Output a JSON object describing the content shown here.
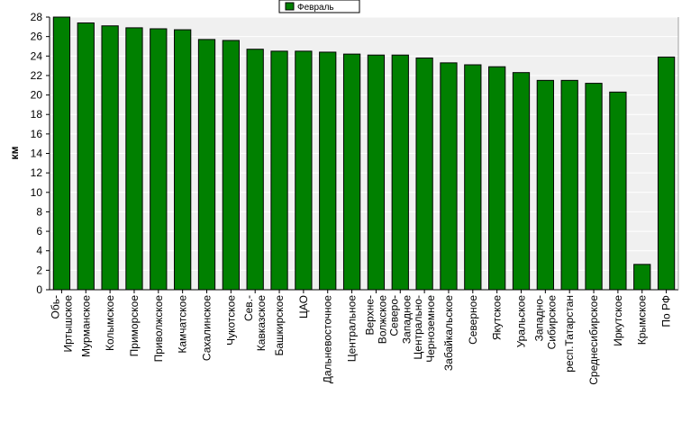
{
  "chart_data": {
    "type": "bar",
    "ylabel": "км",
    "ylim": [
      0,
      28
    ],
    "ytick_step": 2,
    "grid": true,
    "legend_position": "top",
    "color": "#008000",
    "series": [
      {
        "name": "Февраль",
        "values": [
          28.0,
          27.4,
          27.1,
          26.9,
          26.8,
          26.7,
          25.7,
          25.6,
          24.7,
          24.5,
          24.5,
          24.4,
          24.2,
          24.1,
          24.1,
          23.8,
          23.3,
          23.1,
          22.9,
          22.3,
          21.5,
          21.5,
          21.2,
          20.3,
          2.6,
          23.9
        ]
      }
    ],
    "categories": [
      "Обь-Иртышское",
      "Мурманское",
      "Колымское",
      "Приморское",
      "Приволжское",
      "Камчатское",
      "Сахалинское",
      "Чукотское",
      "Сев.-Кавказское",
      "Башкирское",
      "ЦАО",
      "Дальневосточное",
      "Центральное",
      "Верхне-Волжское",
      "Северо-Западное",
      "Центрально-Черноземное",
      "Забайкальское",
      "Северное",
      "Якутское",
      "Уральское",
      "Западно-Сибирское",
      "респ.Татарстан",
      "Среднесибирское",
      "Иркутское",
      "Крымское",
      "По РФ"
    ],
    "category_lines": [
      [
        "Обь-",
        "Иртышское"
      ],
      [
        "Мурманское"
      ],
      [
        "Колымское"
      ],
      [
        "Приморское"
      ],
      [
        "Приволжское"
      ],
      [
        "Камчатское"
      ],
      [
        "Сахалинское"
      ],
      [
        "Чукотское"
      ],
      [
        "Сев.-",
        "Кавказское"
      ],
      [
        "Башкирское"
      ],
      [
        "ЦАО"
      ],
      [
        "Дальневосточное"
      ],
      [
        "Центральное"
      ],
      [
        "Верхне-",
        "Волжское"
      ],
      [
        "Северо-",
        "Западное"
      ],
      [
        "Центрально-",
        "Черноземное"
      ],
      [
        "Забайкальское"
      ],
      [
        "Северное"
      ],
      [
        "Якутское"
      ],
      [
        "Уральское"
      ],
      [
        "Западно-",
        "Сибирское"
      ],
      [
        "респ.Татарстан"
      ],
      [
        "Среднесибирское"
      ],
      [
        "Иркутское"
      ],
      [
        "Крымское"
      ],
      [
        "По РФ"
      ]
    ]
  }
}
